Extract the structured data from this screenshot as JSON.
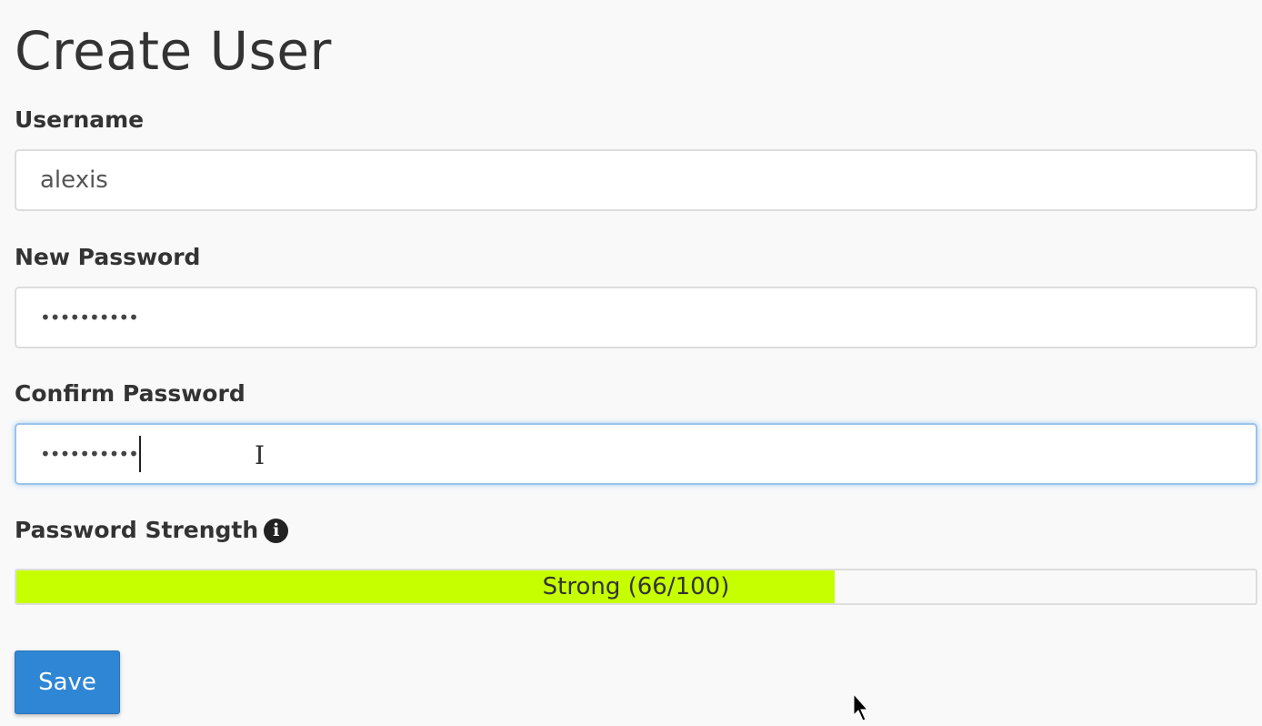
{
  "page": {
    "title": "Create User"
  },
  "form": {
    "username": {
      "label": "Username",
      "value": "alexis"
    },
    "new_password": {
      "label": "New Password",
      "value": "••••••••••"
    },
    "confirm_password": {
      "label": "Confirm Password",
      "value": "••••••••••"
    },
    "strength": {
      "label": "Password Strength",
      "text": "Strong (66/100)",
      "score": 66,
      "max": 100,
      "fill_color": "#c6ff00",
      "info_icon": "info-circle-icon"
    },
    "save_label": "Save"
  },
  "colors": {
    "accent": "#2f86d4",
    "strength_fill": "#c6ff00"
  }
}
